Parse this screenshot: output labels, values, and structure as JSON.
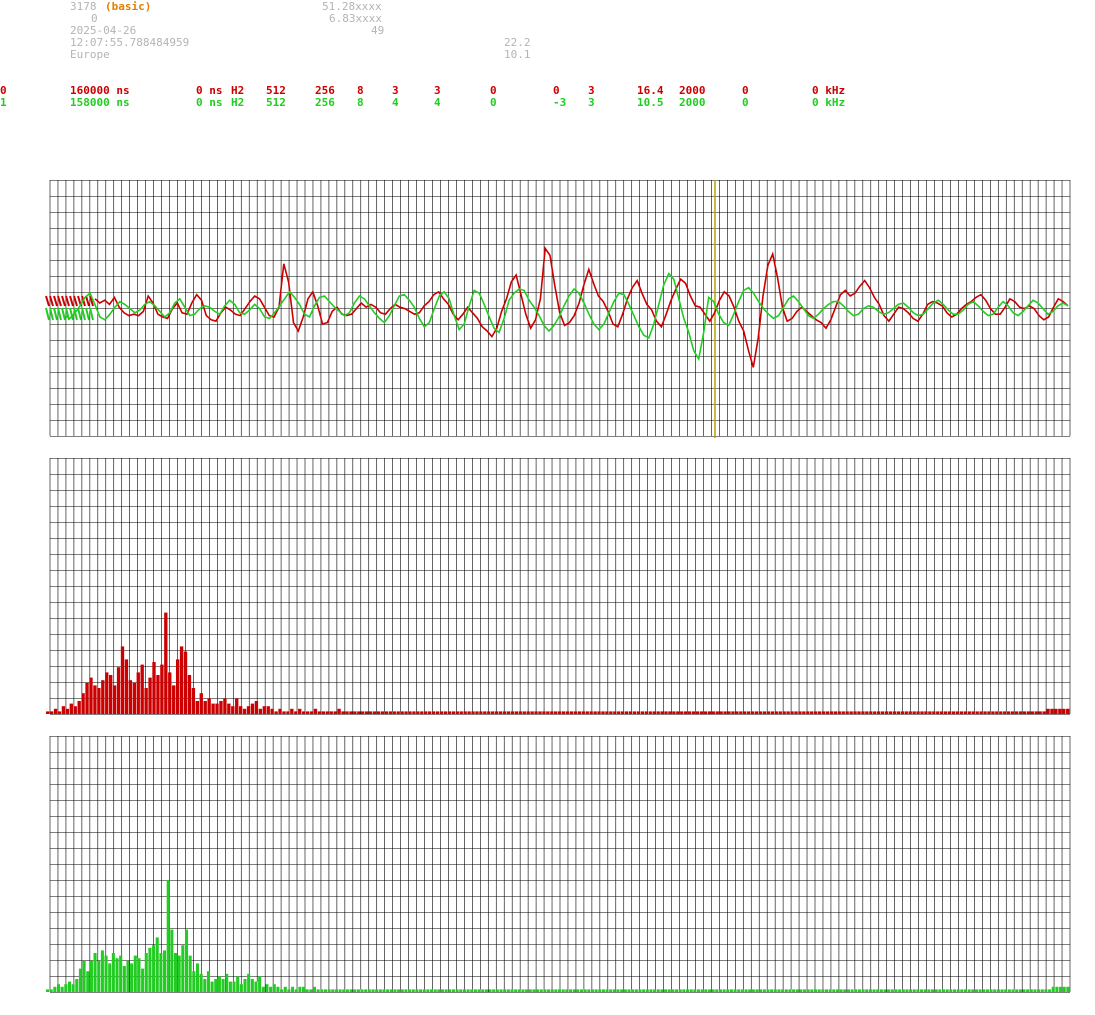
{
  "header": {
    "station_id": "3178",
    "mode": "(basic)",
    "line2_value": "0",
    "date": "2025-04-26",
    "time": "12:07:55.788484959",
    "region": "Europe",
    "lat": "51.28xxxx",
    "lon": "6.83xxxx",
    "alt": "49",
    "val1": "22.2",
    "val2": "10.1"
  },
  "channels": [
    {
      "id": "0",
      "period": "160000 ns",
      "offset": "0 ns",
      "type": "H2",
      "n1": "512",
      "n2": "256",
      "n3": "8",
      "n4": "3",
      "n5": "3",
      "n6": "0",
      "n7": "0",
      "n8": "3",
      "freq": "16.4",
      "rate": "2000",
      "n9": "0",
      "khz": "0 kHz",
      "color": "#cc0000"
    },
    {
      "id": "1",
      "period": "158000 ns",
      "offset": "0 ns",
      "type": "H2",
      "n1": "512",
      "n2": "256",
      "n3": "8",
      "n4": "4",
      "n5": "4",
      "n6": "0",
      "n7": "-3",
      "n8": "3",
      "freq": "10.5",
      "rate": "2000",
      "n9": "0",
      "khz": "0 kHz",
      "color": "#22cc22"
    }
  ],
  "colors": {
    "grid": "#000000",
    "red_channel": "#cc0000",
    "green_channel": "#22cc22",
    "marker_line": "#b8a000",
    "header_text": "#b4b4b4",
    "mode_text": "#e08000"
  },
  "chart_data": [
    {
      "type": "line",
      "series": [
        {
          "values": [
            0.8,
            0.5,
            0.7,
            0.4,
            0.9,
            0.2,
            -0.2,
            -0.4,
            -0.3,
            -0.4,
            -0.1,
            1.0,
            0.5,
            -0.3,
            -0.5,
            -0.6,
            0.1,
            0.5,
            -0.2,
            -0.3,
            0.5,
            1.1,
            0.7,
            -0.4,
            -0.7,
            -0.8,
            -0.2,
            0.2,
            0.0,
            -0.3,
            -0.4,
            0.1,
            0.6,
            1.0,
            0.8,
            0.2,
            -0.4,
            -0.5,
            0.2,
            3.3,
            2.0,
            -0.9,
            -1.5,
            -0.5,
            0.8,
            1.3,
            0.3,
            -1.0,
            -0.9,
            -0.1,
            0.2,
            -0.3,
            -0.4,
            -0.3,
            0.1,
            0.5,
            0.2,
            0.4,
            0.2,
            -0.2,
            -0.3,
            0.1,
            0.4,
            0.2,
            0.1,
            -0.1,
            -0.3,
            -0.2,
            0.3,
            0.6,
            1.1,
            1.3,
            0.8,
            0.4,
            -0.3,
            -0.7,
            -0.3,
            0.2,
            -0.2,
            -0.6,
            -1.2,
            -1.5,
            -1.9,
            -1.3,
            -0.1,
            0.8,
            2.0,
            2.5,
            1.1,
            -0.3,
            -1.3,
            -0.7,
            0.8,
            4.4,
            3.9,
            1.7,
            -0.2,
            -1.1,
            -0.9,
            -0.4,
            0.5,
            1.8,
            2.9,
            1.9,
            1.0,
            0.6,
            -0.1,
            -1.0,
            -1.2,
            -0.3,
            0.8,
            1.6,
            2.1,
            1.2,
            0.4,
            0.0,
            -0.8,
            -1.2,
            -0.3,
            0.7,
            1.5,
            2.2,
            1.9,
            1.0,
            0.3,
            0.2,
            -0.3,
            -0.8,
            -0.2,
            0.7,
            1.3,
            1.0,
            0.2,
            -0.8,
            -1.5,
            -2.9,
            -4.1,
            -2.0,
            1.0,
            3.2,
            4.0,
            2.3,
            0.2,
            -0.8,
            -0.6,
            -0.1,
            0.2,
            -0.1,
            -0.4,
            -0.7,
            -0.9,
            -1.3,
            -0.7,
            0.2,
            1.1,
            1.4,
            1.0,
            1.2,
            1.7,
            2.1,
            1.6,
            0.9,
            0.4,
            -0.4,
            -0.8,
            -0.3,
            0.2,
            0.1,
            -0.2,
            -0.6,
            -0.8,
            -0.3,
            0.4,
            0.6,
            0.5,
            0.3,
            -0.2,
            -0.5,
            -0.3,
            0.1,
            0.4,
            0.6,
            0.9,
            1.1,
            0.7,
            0.1,
            -0.3,
            -0.3,
            0.2,
            0.8,
            0.6,
            0.2,
            0.1,
            0.3,
            0.1,
            -0.4,
            -0.7,
            -0.5,
            0.2,
            0.8,
            0.6,
            0.3
          ],
          "color": "#cc0000"
        },
        {
          "values": [
            -0.4,
            -0.6,
            -0.2,
            0.3,
            0.9,
            1.2,
            0.4,
            -0.5,
            -0.7,
            -0.3,
            0.2,
            0.6,
            0.4,
            0.1,
            -0.2,
            0.0,
            0.4,
            0.6,
            0.3,
            -0.1,
            -0.5,
            -0.2,
            0.5,
            0.8,
            0.2,
            -0.4,
            -0.3,
            0.1,
            0.3,
            0.2,
            -0.1,
            -0.3,
            0.3,
            0.7,
            0.4,
            -0.2,
            -0.3,
            0.0,
            0.4,
            0.1,
            -0.5,
            -0.6,
            -0.2,
            0.3,
            0.8,
            1.3,
            0.9,
            0.4,
            -0.3,
            -0.5,
            0.3,
            0.9,
            1.0,
            0.6,
            0.2,
            -0.1,
            -0.4,
            -0.2,
            0.5,
            1.0,
            0.8,
            0.3,
            -0.2,
            -0.6,
            -0.9,
            -0.4,
            0.3,
            1.0,
            1.1,
            0.7,
            0.2,
            -0.6,
            -1.2,
            -0.9,
            0.1,
            1.0,
            1.3,
            0.8,
            -0.4,
            -1.4,
            -1.0,
            0.3,
            1.4,
            1.2,
            0.4,
            -0.5,
            -1.3,
            -1.6,
            -0.6,
            0.7,
            1.2,
            1.5,
            1.4,
            0.7,
            0.2,
            -0.4,
            -1.1,
            -1.5,
            -1.1,
            -0.5,
            0.3,
            1.0,
            1.5,
            1.2,
            0.5,
            -0.3,
            -1.0,
            -1.4,
            -1.0,
            -0.2,
            0.6,
            1.2,
            1.1,
            0.4,
            -0.4,
            -1.2,
            -1.8,
            -2.0,
            -1.0,
            0.4,
            1.8,
            2.6,
            2.2,
            0.8,
            -0.6,
            -1.6,
            -2.9,
            -3.5,
            -1.6,
            0.9,
            0.6,
            -0.3,
            -0.9,
            -1.1,
            -0.3,
            0.6,
            1.4,
            1.6,
            1.2,
            0.6,
            0.1,
            -0.3,
            -0.6,
            -0.4,
            0.2,
            0.8,
            1.0,
            0.6,
            0.1,
            -0.4,
            -0.6,
            -0.3,
            0.1,
            0.4,
            0.6,
            0.6,
            0.3,
            -0.1,
            -0.4,
            -0.3,
            0.1,
            0.3,
            0.2,
            -0.1,
            -0.3,
            -0.2,
            0.1,
            0.4,
            0.5,
            0.2,
            -0.2,
            -0.4,
            -0.3,
            0.1,
            0.5,
            0.7,
            0.4,
            0.0,
            -0.3,
            -0.3,
            0.0,
            0.4,
            0.6,
            0.3,
            -0.1,
            -0.4,
            -0.3,
            0.2,
            0.6,
            0.3,
            -0.2,
            -0.4,
            -0.1,
            0.3,
            0.7,
            0.5,
            0.1,
            -0.3,
            -0.1,
            0.3,
            0.5,
            0.3
          ],
          "color": "#22cc22"
        }
      ],
      "grid": true
    },
    {
      "type": "bar",
      "series": [
        {
          "values": [
            1,
            1,
            2,
            1,
            3,
            2,
            4,
            3,
            5,
            8,
            12,
            14,
            11,
            10,
            13,
            16,
            15,
            11,
            18,
            26,
            21,
            13,
            12,
            16,
            19,
            10,
            14,
            20,
            15,
            19,
            39,
            16,
            11,
            21,
            26,
            24,
            15,
            10,
            5,
            8,
            5,
            6,
            4,
            4,
            5,
            6,
            4,
            3,
            6,
            3,
            2,
            3,
            4,
            5,
            2,
            3,
            3,
            2,
            1,
            2,
            1,
            1,
            2,
            1,
            2,
            1,
            1,
            1,
            2,
            1,
            1,
            1,
            1,
            1,
            2,
            1,
            1,
            1,
            1,
            1,
            1,
            1,
            1,
            1,
            1,
            1,
            1,
            1,
            1,
            1,
            1,
            1,
            1,
            1,
            1,
            1,
            1,
            1,
            1,
            1,
            1,
            1,
            1,
            1,
            1,
            1,
            1,
            1,
            1,
            1,
            1,
            1,
            1,
            1,
            1,
            1,
            1,
            1,
            1,
            1,
            1,
            1,
            1,
            1,
            1,
            1,
            1,
            1,
            1,
            1,
            1,
            1,
            1,
            1,
            1,
            1,
            1,
            1,
            1,
            1,
            1,
            1,
            1,
            1,
            1,
            1,
            1,
            1,
            1,
            1,
            1,
            1,
            1,
            1,
            1,
            1,
            1,
            1,
            1,
            1,
            1,
            1,
            1,
            1,
            1,
            1,
            1,
            1,
            1,
            1,
            1,
            1,
            1,
            1,
            1,
            1,
            1,
            1,
            1,
            1,
            1,
            1,
            1,
            1,
            1,
            1,
            1,
            1,
            1,
            1,
            1,
            1,
            1,
            1,
            1,
            1,
            1,
            1,
            1,
            1,
            1,
            1,
            1,
            1,
            1,
            1,
            1,
            1,
            1,
            1,
            1,
            1,
            1,
            1,
            1,
            1,
            1,
            1,
            1,
            1,
            1,
            1,
            1,
            1,
            1,
            1,
            1,
            1,
            1,
            1,
            1,
            1,
            1,
            1,
            1,
            1,
            1,
            1,
            1,
            1,
            1,
            1,
            1,
            1,
            1,
            1,
            1,
            1,
            1,
            1,
            1,
            1,
            1,
            1,
            2,
            2,
            2,
            2,
            2,
            2
          ],
          "color": "#cc0000"
        }
      ],
      "grid": true
    },
    {
      "type": "bar",
      "series": [
        {
          "values": [
            1,
            1,
            2,
            3,
            2,
            3,
            4,
            3,
            5,
            9,
            12,
            8,
            12,
            15,
            12,
            16,
            14,
            11,
            15,
            13,
            14,
            10,
            12,
            11,
            14,
            13,
            9,
            15,
            17,
            18,
            21,
            15,
            16,
            43,
            24,
            15,
            14,
            18,
            24,
            14,
            8,
            11,
            7,
            5,
            8,
            4,
            5,
            6,
            5,
            7,
            4,
            4,
            6,
            3,
            5,
            7,
            5,
            4,
            6,
            2,
            3,
            2,
            3,
            2,
            1,
            2,
            1,
            2,
            1,
            2,
            2,
            1,
            1,
            2,
            1,
            1,
            1,
            1,
            1,
            1,
            1,
            1,
            1,
            1,
            1,
            1,
            1,
            1,
            1,
            1,
            1,
            1,
            1,
            1,
            1,
            1,
            1,
            1,
            1,
            1,
            1,
            1,
            1,
            1,
            1,
            1,
            1,
            1,
            1,
            1,
            1,
            1,
            1,
            1,
            1,
            1,
            1,
            1,
            1,
            1,
            1,
            1,
            1,
            1,
            1,
            1,
            1,
            1,
            1,
            1,
            1,
            1,
            1,
            1,
            1,
            1,
            1,
            1,
            1,
            1,
            1,
            1,
            1,
            1,
            1,
            1,
            1,
            1,
            1,
            1,
            1,
            1,
            1,
            1,
            1,
            1,
            1,
            1,
            1,
            1,
            1,
            1,
            1,
            1,
            1,
            1,
            1,
            1,
            1,
            1,
            1,
            1,
            1,
            1,
            1,
            1,
            1,
            1,
            1,
            1,
            1,
            1,
            1,
            1,
            1,
            1,
            1,
            1,
            1,
            1,
            1,
            1,
            1,
            1,
            1,
            1,
            1,
            1,
            1,
            1,
            1,
            1,
            1,
            1,
            1,
            1,
            1,
            1,
            1,
            1,
            1,
            1,
            1,
            1,
            1,
            1,
            1,
            1,
            1,
            1,
            1,
            1,
            1,
            1,
            1,
            1,
            1,
            1,
            1,
            1,
            1,
            1,
            1,
            1,
            1,
            1,
            1,
            1,
            1,
            1,
            1,
            1,
            1,
            1,
            1,
            1,
            1,
            1,
            1,
            1,
            1,
            1,
            1,
            1,
            1,
            1,
            1,
            1,
            1,
            1,
            1,
            1,
            1,
            1,
            1,
            1,
            1,
            1,
            1,
            1,
            1,
            1,
            1,
            1,
            1,
            2,
            2,
            2,
            2,
            2
          ],
          "color": "#22cc22"
        }
      ],
      "grid": true
    }
  ]
}
